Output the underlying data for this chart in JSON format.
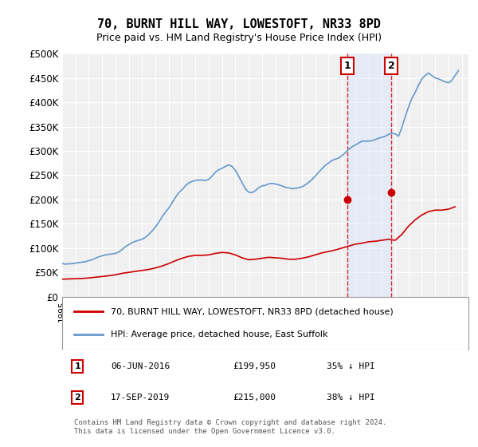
{
  "title": "70, BURNT HILL WAY, LOWESTOFT, NR33 8PD",
  "subtitle": "Price paid vs. HM Land Registry's House Price Index (HPI)",
  "ylabel_ticks": [
    "£0",
    "£50K",
    "£100K",
    "£150K",
    "£200K",
    "£250K",
    "£300K",
    "£350K",
    "£400K",
    "£450K",
    "£500K"
  ],
  "ytick_values": [
    0,
    50000,
    100000,
    150000,
    200000,
    250000,
    300000,
    350000,
    400000,
    450000,
    500000
  ],
  "xlim_start": 1995.0,
  "xlim_end": 2025.5,
  "ylim": [
    0,
    500000
  ],
  "background_color": "#ffffff",
  "plot_bg_color": "#f0f0f0",
  "grid_color": "#ffffff",
  "hpi_line_color": "#6699cc",
  "price_line_color": "#cc0000",
  "marker_color": "#cc0000",
  "marker1_x": 2016.43,
  "marker1_y": 199950,
  "marker2_x": 2019.71,
  "marker2_y": 215000,
  "vline_color": "#cc0000",
  "legend_label_red": "70, BURNT HILL WAY, LOWESTOFT, NR33 8PD (detached house)",
  "legend_label_blue": "HPI: Average price, detached house, East Suffolk",
  "note1_num": "1",
  "note1_date": "06-JUN-2016",
  "note1_price": "£199,950",
  "note1_hpi": "35% ↓ HPI",
  "note2_num": "2",
  "note2_date": "17-SEP-2019",
  "note2_price": "£215,000",
  "note2_hpi": "38% ↓ HPI",
  "footer": "Contains HM Land Registry data © Crown copyright and database right 2024.\nThis data is licensed under the Open Government Licence v3.0.",
  "hpi_data": {
    "years": [
      1995,
      1995.25,
      1995.5,
      1995.75,
      1996,
      1996.25,
      1996.5,
      1996.75,
      1997,
      1997.25,
      1997.5,
      1997.75,
      1998,
      1998.25,
      1998.5,
      1998.75,
      1999,
      1999.25,
      1999.5,
      1999.75,
      2000,
      2000.25,
      2000.5,
      2000.75,
      2001,
      2001.25,
      2001.5,
      2001.75,
      2002,
      2002.25,
      2002.5,
      2002.75,
      2003,
      2003.25,
      2003.5,
      2003.75,
      2004,
      2004.25,
      2004.5,
      2004.75,
      2005,
      2005.25,
      2005.5,
      2005.75,
      2006,
      2006.25,
      2006.5,
      2006.75,
      2007,
      2007.25,
      2007.5,
      2007.75,
      2008,
      2008.25,
      2008.5,
      2008.75,
      2009,
      2009.25,
      2009.5,
      2009.75,
      2010,
      2010.25,
      2010.5,
      2010.75,
      2011,
      2011.25,
      2011.5,
      2011.75,
      2012,
      2012.25,
      2012.5,
      2012.75,
      2013,
      2013.25,
      2013.5,
      2013.75,
      2014,
      2014.25,
      2014.5,
      2014.75,
      2015,
      2015.25,
      2015.5,
      2015.75,
      2016,
      2016.25,
      2016.5,
      2016.75,
      2017,
      2017.25,
      2017.5,
      2017.75,
      2018,
      2018.25,
      2018.5,
      2018.75,
      2019,
      2019.25,
      2019.5,
      2019.75,
      2020,
      2020.25,
      2020.5,
      2020.75,
      2021,
      2021.25,
      2021.5,
      2021.75,
      2022,
      2022.25,
      2022.5,
      2022.75,
      2023,
      2023.25,
      2023.5,
      2023.75,
      2024,
      2024.25,
      2024.5,
      2024.75
    ],
    "values": [
      68000,
      67000,
      67500,
      68000,
      69000,
      70000,
      71000,
      72000,
      74000,
      76000,
      79000,
      82000,
      84000,
      86000,
      87000,
      88000,
      89000,
      92000,
      97000,
      103000,
      107000,
      111000,
      114000,
      116000,
      118000,
      122000,
      128000,
      135000,
      143000,
      153000,
      164000,
      174000,
      182000,
      193000,
      204000,
      214000,
      220000,
      228000,
      234000,
      237000,
      239000,
      240000,
      240000,
      239000,
      241000,
      248000,
      256000,
      261000,
      264000,
      268000,
      271000,
      268000,
      260000,
      248000,
      235000,
      222000,
      215000,
      214000,
      218000,
      224000,
      228000,
      229000,
      232000,
      233000,
      232000,
      230000,
      228000,
      225000,
      224000,
      222000,
      223000,
      224000,
      226000,
      230000,
      235000,
      241000,
      248000,
      256000,
      263000,
      270000,
      275000,
      280000,
      283000,
      285000,
      290000,
      296000,
      303000,
      308000,
      312000,
      316000,
      320000,
      320000,
      320000,
      321000,
      323000,
      326000,
      328000,
      330000,
      334000,
      336000,
      335000,
      330000,
      348000,
      370000,
      390000,
      408000,
      420000,
      435000,
      448000,
      455000,
      460000,
      455000,
      450000,
      448000,
      445000,
      442000,
      440000,
      445000,
      455000,
      465000
    ]
  },
  "price_data": {
    "years": [
      1995,
      1995.5,
      1996,
      1996.5,
      1997,
      1997.5,
      1998,
      1998.5,
      1999,
      1999.5,
      2000,
      2000.5,
      2001,
      2001.5,
      2002,
      2002.5,
      2003,
      2003.5,
      2004,
      2004.5,
      2005,
      2005.5,
      2006,
      2006.5,
      2007,
      2007.5,
      2008,
      2008.5,
      2009,
      2009.5,
      2010,
      2010.5,
      2011,
      2011.5,
      2012,
      2012.5,
      2013,
      2013.5,
      2014,
      2014.5,
      2015,
      2015.5,
      2016,
      2016.5,
      2017,
      2017.5,
      2018,
      2018.5,
      2019,
      2019.5,
      2020,
      2020.5,
      2021,
      2021.5,
      2022,
      2022.5,
      2023,
      2023.5,
      2024,
      2024.5
    ],
    "values": [
      36000,
      36500,
      37000,
      37500,
      38500,
      40000,
      41500,
      43000,
      45000,
      48000,
      50000,
      52000,
      54000,
      56000,
      59000,
      63000,
      68000,
      74000,
      79000,
      83000,
      85000,
      85000,
      86000,
      89000,
      91000,
      90000,
      86000,
      80000,
      76000,
      77000,
      79000,
      81000,
      80000,
      79000,
      77000,
      77000,
      79000,
      82000,
      86000,
      90000,
      93000,
      96000,
      100000,
      104000,
      108000,
      110000,
      113000,
      114000,
      116000,
      118000,
      116000,
      128000,
      145000,
      158000,
      168000,
      175000,
      178000,
      178000,
      180000,
      185000
    ]
  }
}
